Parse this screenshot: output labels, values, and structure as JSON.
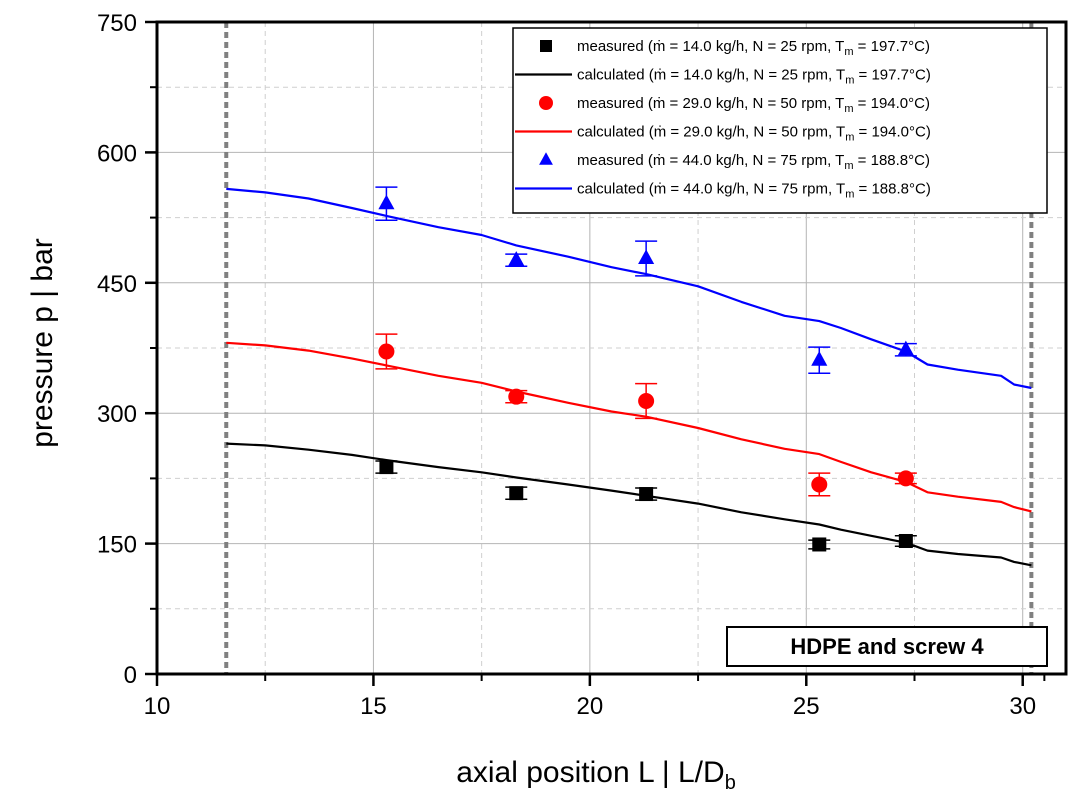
{
  "chart_data": {
    "type": "line",
    "xlabel": "axial position L  |  L/D",
    "xlabel_sub": "b",
    "ylabel": "pressure p  |  bar",
    "xlim": [
      10,
      31
    ],
    "ylim": [
      0,
      750
    ],
    "xticks": [
      10,
      15,
      20,
      25,
      30
    ],
    "yticks": [
      0,
      150,
      300,
      450,
      600,
      750
    ],
    "xtick_labels": [
      "10",
      "15",
      "20",
      "25",
      "30"
    ],
    "ytick_labels": [
      "0",
      "150",
      "300",
      "450",
      "600",
      "750"
    ],
    "grid": true,
    "legend_position": "top-right",
    "vertical_reference_lines": [
      11.6,
      30.2
    ],
    "annotation": "HDPE and screw 4",
    "series": [
      {
        "name_prefix": "measured (ṁ = 14.0 kg/h, N = 25 rpm, T",
        "name_sub": "m",
        "name_suffix": " = 197.7°C)",
        "kind": "measured",
        "marker": "square",
        "color": "#000000",
        "x": [
          15.3,
          18.3,
          21.3,
          25.3,
          27.3
        ],
        "y": [
          238,
          208,
          207,
          149,
          153
        ],
        "err": [
          7,
          7,
          7,
          5,
          6
        ]
      },
      {
        "name_prefix": "calculated (ṁ = 14.0 kg/h, N = 25 rpm, T",
        "name_sub": "m",
        "name_suffix": " = 197.7°C)",
        "kind": "calculated",
        "color": "#000000",
        "x": [
          11.6,
          12.5,
          13.5,
          14.5,
          15.3,
          16.5,
          17.5,
          18.3,
          19.5,
          20.5,
          21.3,
          22.5,
          23.5,
          24.5,
          25.3,
          25.8,
          26.5,
          27.3,
          27.8,
          28.5,
          29.5,
          29.8,
          30.2
        ],
        "y": [
          265,
          263,
          258,
          252,
          246,
          238,
          232,
          226,
          218,
          211,
          205,
          196,
          186,
          178,
          172,
          166,
          159,
          151,
          142,
          138,
          134,
          129,
          125
        ]
      },
      {
        "name_prefix": "measured (ṁ = 29.0 kg/h, N = 50 rpm, T",
        "name_sub": "m",
        "name_suffix": " = 194.0°C)",
        "kind": "measured",
        "marker": "circle",
        "color": "#ff0000",
        "x": [
          15.3,
          18.3,
          21.3,
          25.3,
          27.3
        ],
        "y": [
          371,
          319,
          314,
          218,
          225
        ],
        "err": [
          20,
          7,
          20,
          13,
          6
        ]
      },
      {
        "name_prefix": "calculated (ṁ = 29.0 kg/h, N = 50 rpm, T",
        "name_sub": "m",
        "name_suffix": " = 194.0°C)",
        "kind": "calculated",
        "color": "#ff0000",
        "x": [
          11.6,
          12.5,
          13.5,
          14.5,
          15.3,
          16.5,
          17.5,
          18.3,
          19.5,
          20.5,
          21.3,
          22.5,
          23.5,
          24.5,
          25.3,
          25.8,
          26.5,
          27.3,
          27.8,
          28.5,
          29.5,
          29.8,
          30.2
        ],
        "y": [
          381,
          378,
          372,
          363,
          355,
          343,
          335,
          325,
          312,
          302,
          296,
          283,
          270,
          259,
          253,
          244,
          232,
          221,
          209,
          204,
          198,
          192,
          187
        ]
      },
      {
        "name_prefix": "measured (ṁ = 44.0 kg/h, N = 75 rpm, T",
        "name_sub": "m",
        "name_suffix": " = 188.8°C)",
        "kind": "measured",
        "marker": "triangle",
        "color": "#0000ff",
        "x": [
          15.3,
          18.3,
          21.3,
          25.3,
          27.3
        ],
        "y": [
          541,
          476,
          478,
          361,
          373
        ],
        "err": [
          19,
          7,
          20,
          15,
          7
        ]
      },
      {
        "name_prefix": "calculated (ṁ = 44.0 kg/h, N = 75 rpm, T",
        "name_sub": "m",
        "name_suffix": " = 188.8°C)",
        "kind": "calculated",
        "color": "#0000ff",
        "x": [
          11.6,
          12.5,
          13.5,
          14.5,
          15.3,
          16.5,
          17.5,
          18.3,
          19.5,
          20.5,
          21.3,
          22.5,
          23.5,
          24.5,
          25.3,
          25.8,
          26.5,
          27.3,
          27.8,
          28.5,
          29.5,
          29.8,
          30.2
        ],
        "y": [
          558,
          554,
          547,
          536,
          527,
          514,
          505,
          493,
          480,
          468,
          460,
          446,
          428,
          412,
          406,
          398,
          385,
          371,
          356,
          350,
          343,
          333,
          329
        ]
      }
    ]
  }
}
